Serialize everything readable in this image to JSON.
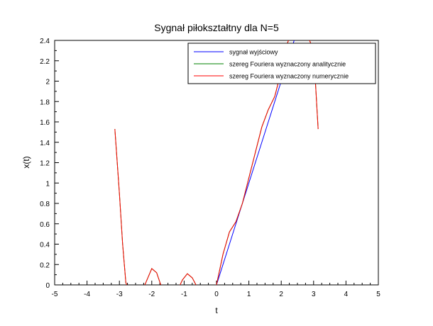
{
  "chart_data": {
    "type": "line",
    "title": "Sygnał piłokształtny dla N=5",
    "xlabel": "t",
    "ylabel": "x(t)",
    "xlim": [
      -5,
      5
    ],
    "ylim": [
      0,
      2.4
    ],
    "xticks": [
      -5,
      -4,
      -3,
      -2,
      -1,
      0,
      1,
      2,
      3,
      4,
      5
    ],
    "yticks": [
      0,
      0.2,
      0.4,
      0.6,
      0.8,
      1,
      1.2,
      1.4,
      1.6,
      1.8,
      2,
      2.2,
      2.4
    ],
    "xticks_labels": [
      "-5",
      "-4",
      "-3",
      "-2",
      "-1",
      "0",
      "1",
      "2",
      "3",
      "4",
      "5"
    ],
    "yticks_labels": [
      "0",
      "0.2",
      "0.4",
      "0.6",
      "0.8",
      "1",
      "1.2",
      "1.4",
      "1.6",
      "1.8",
      "2",
      "2.2",
      "2.4"
    ],
    "grid": false,
    "legend_position": "top-right",
    "series": [
      {
        "name": "sygnał wyjściowy",
        "color": "#0000ff",
        "x": [
          0,
          0.5,
          1,
          1.5,
          2,
          2.2,
          2.4
        ],
        "y": [
          0,
          0.5,
          1,
          1.5,
          2,
          2.2,
          2.4
        ]
      },
      {
        "name": "szereg Fouriera wyznaczony analitycznie",
        "color": "#008000",
        "x": [
          -3.14,
          -3.0,
          -2.9,
          -2.8,
          -2.6,
          -2.4,
          -2.2,
          -2.0,
          -1.85,
          -1.7,
          -1.4,
          -1.2,
          -1.05,
          -0.9,
          -0.75,
          -0.6,
          -0.4,
          -0.2,
          0,
          0.2,
          0.4,
          0.6,
          0.8,
          1.0,
          1.2,
          1.4,
          1.6,
          1.8,
          2.0,
          2.2,
          2.4,
          2.55,
          2.7,
          2.85,
          3.0,
          3.14
        ],
        "y": [
          1.53,
          0.9,
          0.4,
          0.02,
          -0.12,
          -0.1,
          0.01,
          0.16,
          0.12,
          -0.02,
          -0.08,
          -0.05,
          0.05,
          0.11,
          0.07,
          -0.02,
          -0.08,
          -0.05,
          0,
          0.3,
          0.52,
          0.62,
          0.8,
          1.05,
          1.3,
          1.55,
          1.72,
          1.85,
          2.1,
          2.38,
          2.55,
          2.54,
          2.45,
          2.42,
          2.3,
          1.53
        ]
      },
      {
        "name": "szereg Fouriera wyznaczony numerycznie",
        "color": "#ff0000",
        "x": [
          -3.14,
          -3.0,
          -2.9,
          -2.8,
          -2.6,
          -2.4,
          -2.2,
          -2.0,
          -1.85,
          -1.7,
          -1.4,
          -1.2,
          -1.05,
          -0.9,
          -0.75,
          -0.6,
          -0.4,
          -0.2,
          0,
          0.2,
          0.4,
          0.6,
          0.8,
          1.0,
          1.2,
          1.4,
          1.6,
          1.8,
          2.0,
          2.2,
          2.4,
          2.55,
          2.7,
          2.85,
          3.0,
          3.14
        ],
        "y": [
          1.53,
          0.9,
          0.4,
          0.02,
          -0.12,
          -0.1,
          0.01,
          0.16,
          0.12,
          -0.02,
          -0.08,
          -0.05,
          0.05,
          0.11,
          0.07,
          -0.02,
          -0.08,
          -0.05,
          0,
          0.3,
          0.52,
          0.62,
          0.8,
          1.05,
          1.3,
          1.55,
          1.72,
          1.85,
          2.1,
          2.38,
          2.55,
          2.54,
          2.45,
          2.42,
          2.3,
          1.53
        ]
      }
    ]
  }
}
